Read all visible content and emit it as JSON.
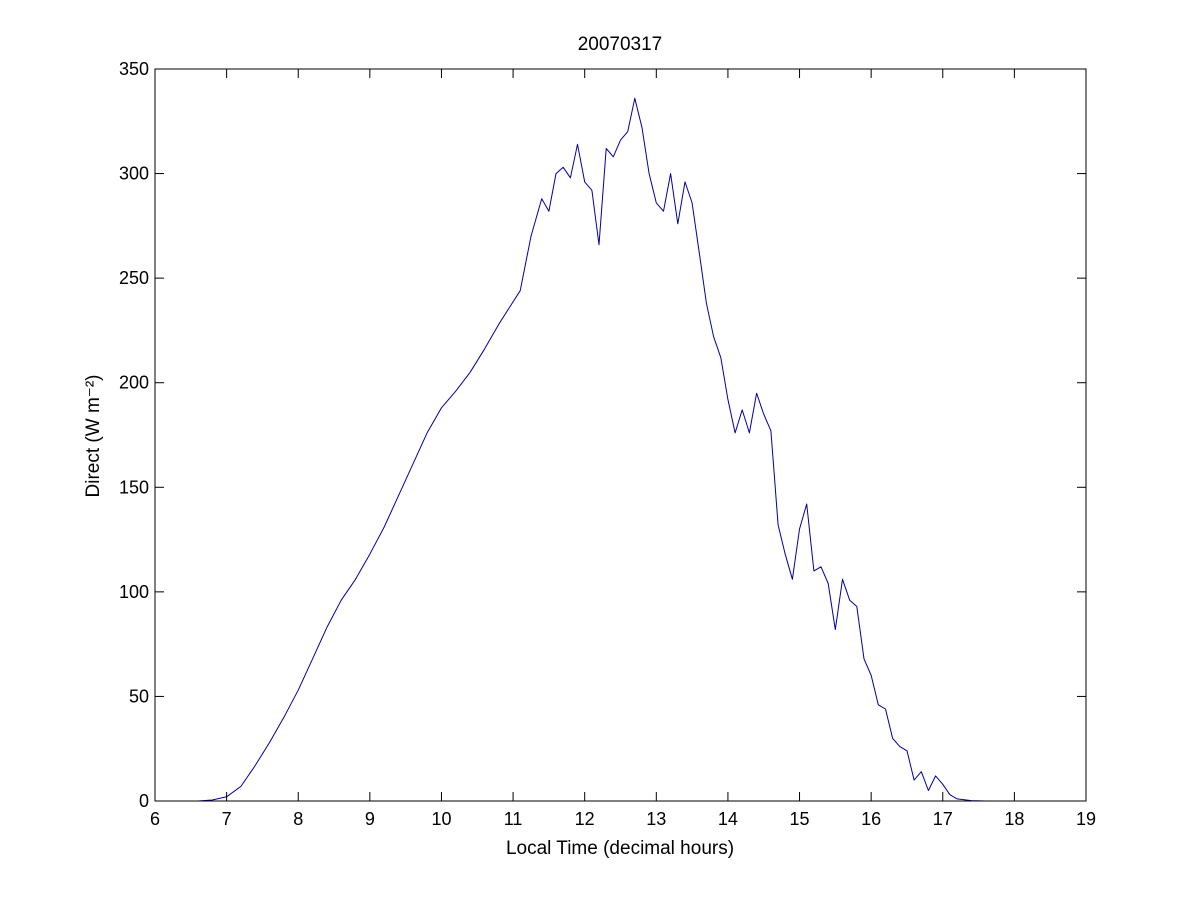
{
  "chart_data": {
    "type": "line",
    "title": "20070317",
    "xlabel": "Local Time (decimal hours)",
    "ylabel": "Direct (W m⁻²)",
    "xlim": [
      6,
      19
    ],
    "ylim": [
      0,
      350
    ],
    "xticks": [
      6,
      7,
      8,
      9,
      10,
      11,
      12,
      13,
      14,
      15,
      16,
      17,
      18,
      19
    ],
    "yticks": [
      0,
      50,
      100,
      150,
      200,
      250,
      300,
      350
    ],
    "grid": false,
    "legend": "none",
    "series": [
      {
        "color": "#0000a0",
        "x": [
          6.6,
          6.8,
          7.0,
          7.2,
          7.4,
          7.6,
          7.8,
          8.0,
          8.2,
          8.4,
          8.6,
          8.8,
          9.0,
          9.2,
          9.4,
          9.6,
          9.8,
          10.0,
          10.2,
          10.4,
          10.6,
          10.8,
          10.95,
          11.1,
          11.25,
          11.4,
          11.5,
          11.6,
          11.7,
          11.8,
          11.9,
          12.0,
          12.1,
          12.2,
          12.3,
          12.4,
          12.5,
          12.6,
          12.7,
          12.8,
          12.9,
          13.0,
          13.1,
          13.2,
          13.3,
          13.4,
          13.5,
          13.6,
          13.7,
          13.8,
          13.9,
          14.0,
          14.1,
          14.2,
          14.3,
          14.4,
          14.5,
          14.6,
          14.7,
          14.8,
          14.9,
          15.0,
          15.1,
          15.2,
          15.3,
          15.4,
          15.5,
          15.6,
          15.7,
          15.8,
          15.9,
          16.0,
          16.1,
          16.2,
          16.3,
          16.4,
          16.5,
          16.6,
          16.7,
          16.8,
          16.9,
          17.0,
          17.1,
          17.2,
          17.4,
          17.6,
          17.75
        ],
        "y": [
          0,
          0.5,
          2,
          7,
          17,
          28,
          40,
          53,
          68,
          83,
          96,
          106,
          118,
          131,
          146,
          161,
          176,
          188,
          196,
          205,
          216,
          228,
          236,
          244,
          270,
          288,
          282,
          300,
          303,
          298,
          314,
          296,
          292,
          266,
          312,
          308,
          316,
          320,
          336,
          322,
          300,
          286,
          282,
          300,
          276,
          296,
          286,
          262,
          238,
          222,
          212,
          192,
          176,
          187,
          176,
          195,
          185,
          177,
          132,
          118,
          106,
          130,
          142,
          110,
          112,
          104,
          82,
          106,
          96,
          93,
          68,
          60,
          46,
          44,
          30,
          26,
          24,
          10,
          14,
          5,
          12,
          8,
          3,
          1,
          0.2,
          0,
          0
        ]
      }
    ]
  }
}
